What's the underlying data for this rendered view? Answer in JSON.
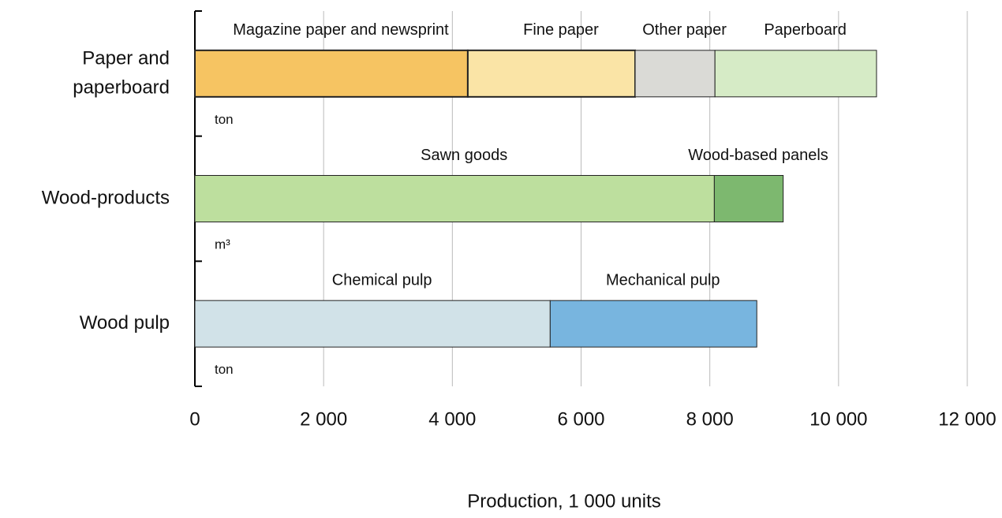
{
  "chart_data": {
    "type": "stacked-bar-horizontal",
    "x_label": "Production,  1 000 units",
    "xlim": [
      0,
      12000
    ],
    "xticks": [
      0,
      {
        "value": 2000,
        "label": "2 000"
      },
      {
        "value": 4000,
        "label": "4 000"
      },
      {
        "value": 6000,
        "label": "6 000"
      },
      {
        "value": 8000,
        "label": "8 000"
      },
      {
        "value": 10000,
        "label": "10 000"
      },
      {
        "value": 12000,
        "label": "12 000"
      }
    ],
    "grid": true,
    "groups": [
      {
        "category": "Paper and paperboard",
        "unit": "ton",
        "segments": [
          {
            "name": "Magazine paper and newsprint",
            "color": "#f6c462",
            "value": 4240
          },
          {
            "name": "Fine paper",
            "color": "#fae4a6",
            "value": 2600
          },
          {
            "name": "Other paper",
            "color": "#dadad6",
            "value": 1240
          },
          {
            "name": "Paperboard",
            "color": "#d6ebc6",
            "value": 2510
          }
        ]
      },
      {
        "category": "Wood-products",
        "unit": "m³",
        "segments": [
          {
            "name": "Sawn goods",
            "color": "#bddf9e",
            "value": 8070
          },
          {
            "name": "Wood-based panels",
            "color": "#7db86f",
            "value": 1070
          }
        ]
      },
      {
        "category": "Wood pulp",
        "unit": "ton",
        "segments": [
          {
            "name": "Chemical pulp",
            "color": "#d1e2e8",
            "value": 5520
          },
          {
            "name": "Mechanical pulp",
            "color": "#78b5df",
            "value": 3210
          }
        ]
      }
    ]
  }
}
